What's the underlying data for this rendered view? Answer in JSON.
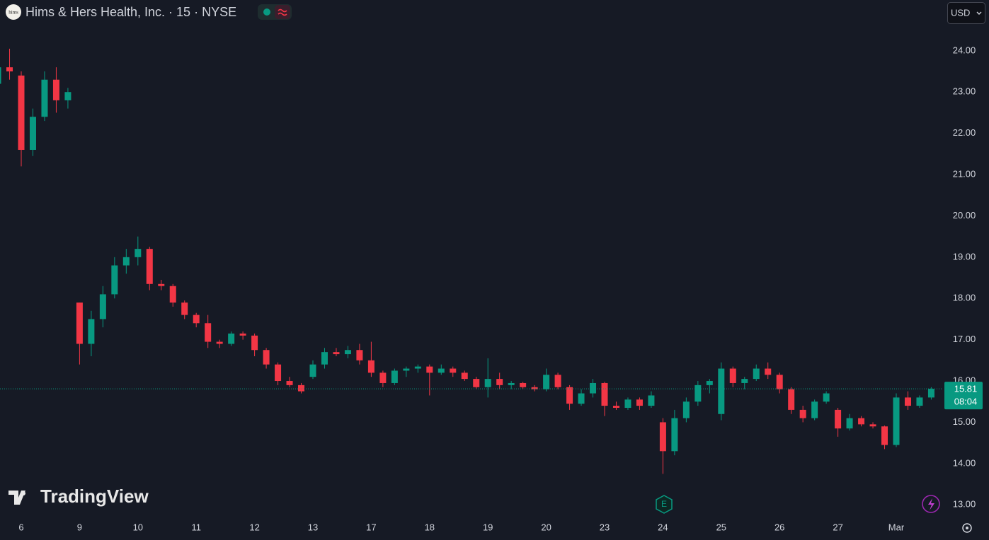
{
  "chart_data": {
    "type": "candlestick",
    "title": "Hims & Hers Health, Inc. · 15 · NYSE",
    "logo": "hims",
    "currency": "USD",
    "watermark": "TradingView",
    "countdown": "08:04",
    "earnings_marker": "E",
    "up_color": "#089981",
    "down_color": "#f23645",
    "categories": [
      null,
      null,
      "6",
      null,
      null,
      null,
      null,
      "9",
      null,
      null,
      null,
      null,
      "10",
      null,
      null,
      null,
      null,
      "11",
      null,
      null,
      null,
      null,
      "12",
      null,
      null,
      null,
      null,
      "13",
      null,
      null,
      null,
      null,
      "17",
      null,
      null,
      null,
      null,
      "18",
      null,
      null,
      null,
      null,
      "19",
      null,
      null,
      null,
      null,
      "20",
      null,
      null,
      null,
      null,
      "23",
      null,
      null,
      null,
      null,
      "24",
      null,
      null,
      null,
      null,
      "25",
      null,
      null,
      null,
      null,
      "26",
      null,
      null,
      null,
      null,
      "27",
      null,
      null,
      null,
      null,
      "Mar",
      null,
      null,
      null
    ],
    "open": [
      23.2,
      23.6,
      23.4,
      21.6,
      22.4,
      23.3,
      22.8,
      17.9,
      16.9,
      17.5,
      18.1,
      18.8,
      19.0,
      19.2,
      18.35,
      18.3,
      17.9,
      17.6,
      17.4,
      16.95,
      16.9,
      17.15,
      17.1,
      16.75,
      16.4,
      16.0,
      15.9,
      16.1,
      16.4,
      16.7,
      16.65,
      16.75,
      16.5,
      16.2,
      15.95,
      16.25,
      16.3,
      16.35,
      16.2,
      16.3,
      16.2,
      16.05,
      15.85,
      16.05,
      15.9,
      15.95,
      15.85,
      15.8,
      16.15,
      15.85,
      15.45,
      15.7,
      15.95,
      15.4,
      15.35,
      15.55,
      15.4,
      15.0,
      14.3,
      15.1,
      15.5,
      15.9,
      15.2,
      16.3,
      15.95,
      16.05,
      16.3,
      16.15,
      15.8,
      15.3,
      15.1,
      15.5,
      15.3,
      14.85,
      15.1,
      14.95,
      14.9,
      14.45,
      15.6,
      15.4,
      15.6
    ],
    "high": [
      23.8,
      24.05,
      23.5,
      22.6,
      23.5,
      23.6,
      23.1,
      17.9,
      17.7,
      18.3,
      19.0,
      19.2,
      19.5,
      19.25,
      18.45,
      18.35,
      17.95,
      17.65,
      17.6,
      17.0,
      17.2,
      17.2,
      17.15,
      16.8,
      16.45,
      16.1,
      15.95,
      16.5,
      16.8,
      16.8,
      16.85,
      16.9,
      16.95,
      16.25,
      16.3,
      16.35,
      16.4,
      16.4,
      16.4,
      16.35,
      16.25,
      16.1,
      16.55,
      16.2,
      16.0,
      15.98,
      15.9,
      16.3,
      16.2,
      15.9,
      15.8,
      16.05,
      15.98,
      15.5,
      15.6,
      15.6,
      15.75,
      15.1,
      15.3,
      15.6,
      16.0,
      16.05,
      16.45,
      16.35,
      16.1,
      16.4,
      16.45,
      16.2,
      15.85,
      15.4,
      15.55,
      15.75,
      15.35,
      15.2,
      15.15,
      15.0,
      14.92,
      15.7,
      15.75,
      15.65,
      15.85
    ],
    "low": [
      22.9,
      23.3,
      21.2,
      21.45,
      22.3,
      22.5,
      22.6,
      16.4,
      16.6,
      17.3,
      18.0,
      18.6,
      18.8,
      18.2,
      18.2,
      17.8,
      17.5,
      17.3,
      16.8,
      16.8,
      16.85,
      17.0,
      16.6,
      16.3,
      15.9,
      15.85,
      15.7,
      16.05,
      16.3,
      16.6,
      16.55,
      16.4,
      16.1,
      15.85,
      15.9,
      16.1,
      16.2,
      15.65,
      16.15,
      16.1,
      16.0,
      15.8,
      15.6,
      15.8,
      15.8,
      15.8,
      15.75,
      15.75,
      15.8,
      15.3,
      15.4,
      15.6,
      15.15,
      15.3,
      15.3,
      15.3,
      15.35,
      13.75,
      14.2,
      15.0,
      15.4,
      15.7,
      15.05,
      15.85,
      15.8,
      16.0,
      16.05,
      15.7,
      15.2,
      15.0,
      15.05,
      15.45,
      14.65,
      14.8,
      14.9,
      14.85,
      14.35,
      14.4,
      15.3,
      15.35,
      15.55
    ],
    "close": [
      23.6,
      23.5,
      21.6,
      22.4,
      23.3,
      22.8,
      23.0,
      16.9,
      17.5,
      18.1,
      18.8,
      19.0,
      19.2,
      18.35,
      18.3,
      17.9,
      17.6,
      17.4,
      16.95,
      16.9,
      17.15,
      17.1,
      16.75,
      16.4,
      16.0,
      15.9,
      15.75,
      16.4,
      16.7,
      16.65,
      16.75,
      16.5,
      16.2,
      15.95,
      16.25,
      16.3,
      16.35,
      16.2,
      16.3,
      16.2,
      16.05,
      15.85,
      16.05,
      15.9,
      15.95,
      15.85,
      15.8,
      16.15,
      15.85,
      15.45,
      15.7,
      15.95,
      15.4,
      15.35,
      15.55,
      15.4,
      15.65,
      14.3,
      15.1,
      15.5,
      15.9,
      16.0,
      16.3,
      15.95,
      16.05,
      16.3,
      16.15,
      15.8,
      15.3,
      15.1,
      15.5,
      15.7,
      14.85,
      15.1,
      14.95,
      14.9,
      14.45,
      15.6,
      15.4,
      15.6,
      15.81
    ],
    "ylim": [
      12.73,
      25.23
    ],
    "yticks": [
      {
        "value": 13,
        "label": "13.00"
      },
      {
        "value": 14,
        "label": "14.00"
      },
      {
        "value": 15,
        "label": "15.00"
      },
      {
        "value": 16,
        "label": "16.00"
      },
      {
        "value": 17,
        "label": "17.00"
      },
      {
        "value": 18,
        "label": "18.00"
      },
      {
        "value": 19,
        "label": "19.00"
      },
      {
        "value": 20,
        "label": "20.00"
      },
      {
        "value": 21,
        "label": "21.00"
      },
      {
        "value": 22,
        "label": "22.00"
      },
      {
        "value": 23,
        "label": "23.00"
      },
      {
        "value": 24,
        "label": "24.00"
      }
    ]
  }
}
